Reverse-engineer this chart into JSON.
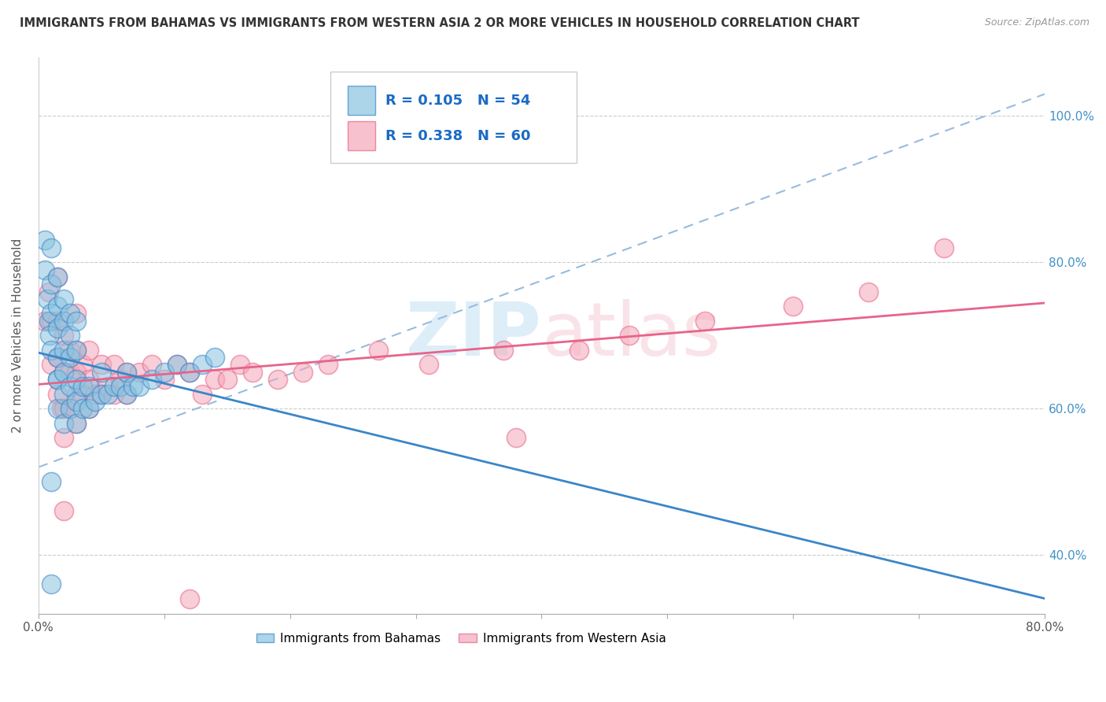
{
  "title": "IMMIGRANTS FROM BAHAMAS VS IMMIGRANTS FROM WESTERN ASIA 2 OR MORE VEHICLES IN HOUSEHOLD CORRELATION CHART",
  "source": "Source: ZipAtlas.com",
  "ylabel": "2 or more Vehicles in Household",
  "legend_label1": "Immigrants from Bahamas",
  "legend_label2": "Immigrants from Western Asia",
  "R1": 0.105,
  "N1": 54,
  "R2": 0.338,
  "N2": 60,
  "xmin": 0.0,
  "xmax": 0.8,
  "ymin": 0.32,
  "ymax": 1.08,
  "y_ticks": [
    0.4,
    0.6,
    0.8,
    1.0
  ],
  "y_tick_labels": [
    "40.0%",
    "60.0%",
    "80.0%",
    "100.0%"
  ],
  "color_blue": "#89c4e1",
  "color_pink": "#f4a7b9",
  "color_blue_line": "#3a86c8",
  "color_pink_line": "#e8638a",
  "color_dashed_line": "#99bbdd",
  "blue_dots_x": [
    0.005,
    0.005,
    0.007,
    0.008,
    0.009,
    0.01,
    0.01,
    0.01,
    0.01,
    0.015,
    0.015,
    0.015,
    0.015,
    0.015,
    0.015,
    0.015,
    0.02,
    0.02,
    0.02,
    0.02,
    0.02,
    0.02,
    0.025,
    0.025,
    0.025,
    0.025,
    0.025,
    0.03,
    0.03,
    0.03,
    0.03,
    0.03,
    0.035,
    0.035,
    0.04,
    0.04,
    0.045,
    0.05,
    0.05,
    0.055,
    0.06,
    0.065,
    0.07,
    0.07,
    0.075,
    0.08,
    0.09,
    0.1,
    0.11,
    0.12,
    0.13,
    0.14,
    0.01,
    0.01
  ],
  "blue_dots_y": [
    0.83,
    0.79,
    0.75,
    0.72,
    0.7,
    0.68,
    0.73,
    0.77,
    0.82,
    0.6,
    0.64,
    0.67,
    0.71,
    0.74,
    0.78,
    0.64,
    0.58,
    0.62,
    0.65,
    0.68,
    0.72,
    0.75,
    0.6,
    0.63,
    0.67,
    0.7,
    0.73,
    0.58,
    0.61,
    0.64,
    0.68,
    0.72,
    0.6,
    0.63,
    0.6,
    0.63,
    0.61,
    0.62,
    0.65,
    0.62,
    0.63,
    0.63,
    0.62,
    0.65,
    0.63,
    0.63,
    0.64,
    0.65,
    0.66,
    0.65,
    0.66,
    0.67,
    0.5,
    0.36
  ],
  "pink_dots_x": [
    0.005,
    0.008,
    0.01,
    0.01,
    0.015,
    0.015,
    0.015,
    0.015,
    0.018,
    0.02,
    0.02,
    0.02,
    0.02,
    0.025,
    0.025,
    0.025,
    0.03,
    0.03,
    0.03,
    0.03,
    0.03,
    0.035,
    0.035,
    0.04,
    0.04,
    0.04,
    0.045,
    0.05,
    0.05,
    0.055,
    0.06,
    0.06,
    0.065,
    0.07,
    0.07,
    0.08,
    0.09,
    0.1,
    0.11,
    0.12,
    0.13,
    0.14,
    0.15,
    0.16,
    0.17,
    0.19,
    0.21,
    0.23,
    0.27,
    0.31,
    0.37,
    0.38,
    0.43,
    0.47,
    0.53,
    0.6,
    0.66,
    0.72,
    0.02,
    0.12
  ],
  "pink_dots_y": [
    0.72,
    0.76,
    0.72,
    0.66,
    0.62,
    0.67,
    0.72,
    0.78,
    0.6,
    0.56,
    0.6,
    0.65,
    0.7,
    0.6,
    0.65,
    0.68,
    0.58,
    0.62,
    0.65,
    0.68,
    0.73,
    0.62,
    0.66,
    0.6,
    0.64,
    0.68,
    0.62,
    0.62,
    0.66,
    0.63,
    0.62,
    0.66,
    0.64,
    0.62,
    0.65,
    0.65,
    0.66,
    0.64,
    0.66,
    0.65,
    0.62,
    0.64,
    0.64,
    0.66,
    0.65,
    0.64,
    0.65,
    0.66,
    0.68,
    0.66,
    0.68,
    0.56,
    0.68,
    0.7,
    0.72,
    0.74,
    0.76,
    0.82,
    0.46,
    0.34
  ]
}
